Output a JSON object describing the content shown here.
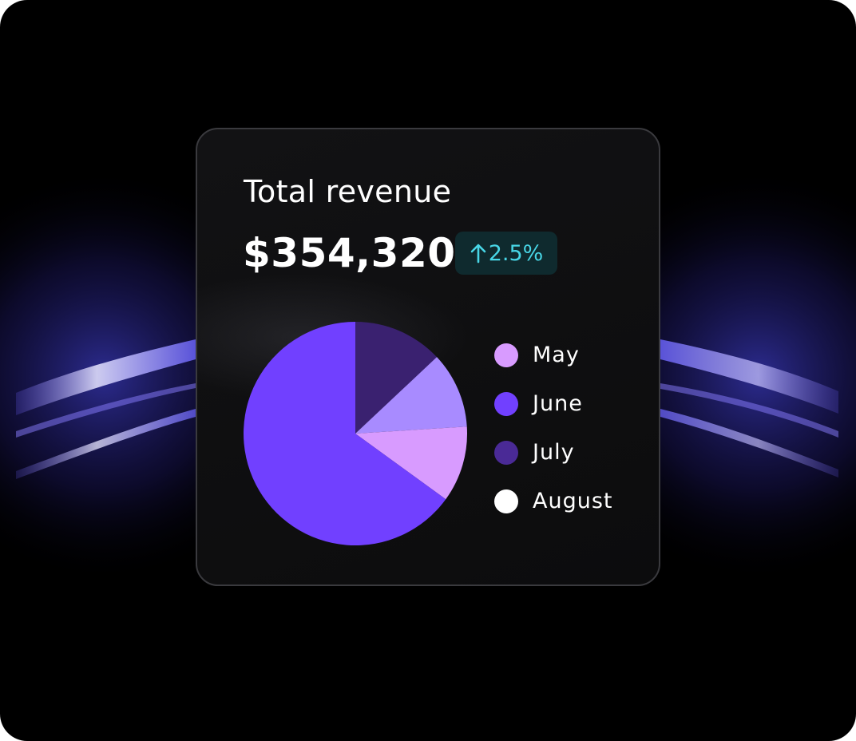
{
  "card": {
    "title": "Total revenue",
    "amount": "$354,320",
    "change": {
      "text": "2.5%",
      "direction": "up",
      "icon": "arrow-up-icon",
      "color": "#48d6e6",
      "background": "#0f2a2e"
    }
  },
  "chart_data": {
    "type": "pie",
    "categories": [
      "May",
      "June",
      "July",
      "August"
    ],
    "values": [
      11,
      65,
      13,
      11
    ],
    "colors": [
      "#d89bff",
      "#7140ff",
      "#3a2170",
      "#a88bff"
    ],
    "legend": {
      "placement": "right",
      "entries": [
        {
          "label": "May",
          "color": "#d89bff"
        },
        {
          "label": "June",
          "color": "#7140ff"
        },
        {
          "label": "July",
          "color": "#4a2a96"
        },
        {
          "label": "August",
          "color": "#ffffff"
        }
      ]
    }
  }
}
